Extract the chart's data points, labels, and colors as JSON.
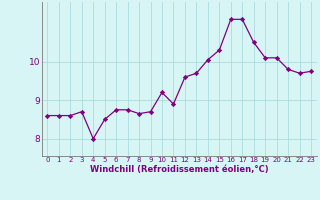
{
  "x": [
    0,
    1,
    2,
    3,
    4,
    5,
    6,
    7,
    8,
    9,
    10,
    11,
    12,
    13,
    14,
    15,
    16,
    17,
    18,
    19,
    20,
    21,
    22,
    23
  ],
  "y": [
    8.6,
    8.6,
    8.6,
    8.7,
    8.0,
    8.5,
    8.75,
    8.75,
    8.65,
    8.7,
    9.2,
    8.9,
    9.6,
    9.7,
    10.05,
    10.3,
    11.1,
    11.1,
    10.5,
    10.1,
    10.1,
    9.8,
    9.7,
    9.75
  ],
  "line_color": "#800080",
  "marker": "D",
  "markersize": 2.2,
  "linewidth": 0.9,
  "bg_color": "#d8f5f5",
  "grid_color": "#aadddd",
  "xlabel": "Windchill (Refroidissement éolien,°C)",
  "xlabel_color": "#800080",
  "yticks": [
    8,
    9,
    10
  ],
  "ylim": [
    7.55,
    11.55
  ],
  "xlim": [
    -0.5,
    23.5
  ],
  "xticks": [
    0,
    1,
    2,
    3,
    4,
    5,
    6,
    7,
    8,
    9,
    10,
    11,
    12,
    13,
    14,
    15,
    16,
    17,
    18,
    19,
    20,
    21,
    22,
    23
  ],
  "tick_label_fontsize": 5.0,
  "ytick_fontsize": 6.5,
  "xlabel_fontsize": 6.0,
  "tick_color": "#800080",
  "spine_color": "#888888"
}
